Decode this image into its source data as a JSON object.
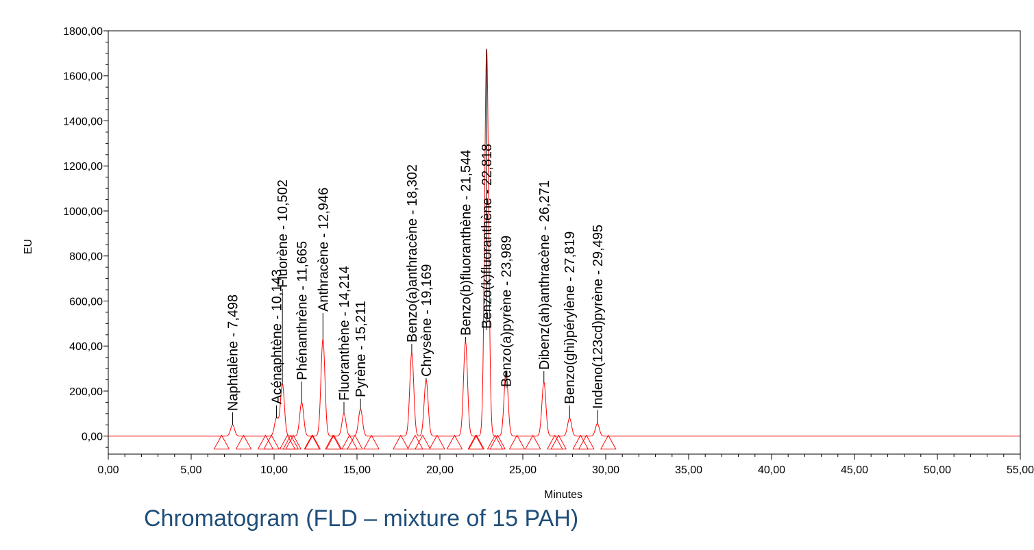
{
  "caption": "Chromatogram (FLD – mixture of 15 PAH)",
  "chart_data": {
    "type": "line",
    "xlabel": "Minutes",
    "ylabel": "EU",
    "xlim": [
      0,
      55
    ],
    "ylim": [
      -80,
      1800
    ],
    "x_ticks": [
      "0,00",
      "5,00",
      "10,00",
      "15,00",
      "20,00",
      "25,00",
      "30,00",
      "35,00",
      "40,00",
      "45,00",
      "50,00",
      "55,00"
    ],
    "y_ticks": [
      "0,00",
      "200,00",
      "400,00",
      "600,00",
      "800,00",
      "1000,00",
      "1200,00",
      "1400,00",
      "1600,00",
      "1800,00"
    ],
    "line_color": "#ff0000",
    "peaks": [
      {
        "label": "Naphtalène - 7,498",
        "rt": 7.498,
        "height": 50
      },
      {
        "label": "Acénaphtène - 10,143",
        "rt": 10.143,
        "height": 80
      },
      {
        "label": "Fluorène - 10,502",
        "rt": 10.502,
        "height": 230
      },
      {
        "label": "Phénanthrène - 11,665",
        "rt": 11.665,
        "height": 150
      },
      {
        "label": "Anthracène - 12,946",
        "rt": 12.946,
        "height": 430
      },
      {
        "label": "Fluoranthène - 14,214",
        "rt": 14.214,
        "height": 100
      },
      {
        "label": "Pyrène - 15,211",
        "rt": 15.211,
        "height": 120
      },
      {
        "label": "Benzo(a)anthracène - 18,302",
        "rt": 18.302,
        "height": 370
      },
      {
        "label": "Chrysène - 19,169",
        "rt": 19.169,
        "height": 250
      },
      {
        "label": "Benzo(b)fluoranthène - 21,544",
        "rt": 21.544,
        "height": 420
      },
      {
        "label": "Benzo(k)fluoranthène - 22,818",
        "rt": 22.818,
        "height": 1720
      },
      {
        "label": "Benzo(a)pyrène - 23,989",
        "rt": 23.989,
        "height": 290
      },
      {
        "label": "Dibenz(ah)anthracène - 26,271",
        "rt": 26.271,
        "height": 240
      },
      {
        "label": "Benzo(ghi)pérylène - 27,819",
        "rt": 27.819,
        "height": 80
      },
      {
        "label": "Indeno(123cd)pyrène - 29,495",
        "rt": 29.495,
        "height": 55
      }
    ]
  }
}
